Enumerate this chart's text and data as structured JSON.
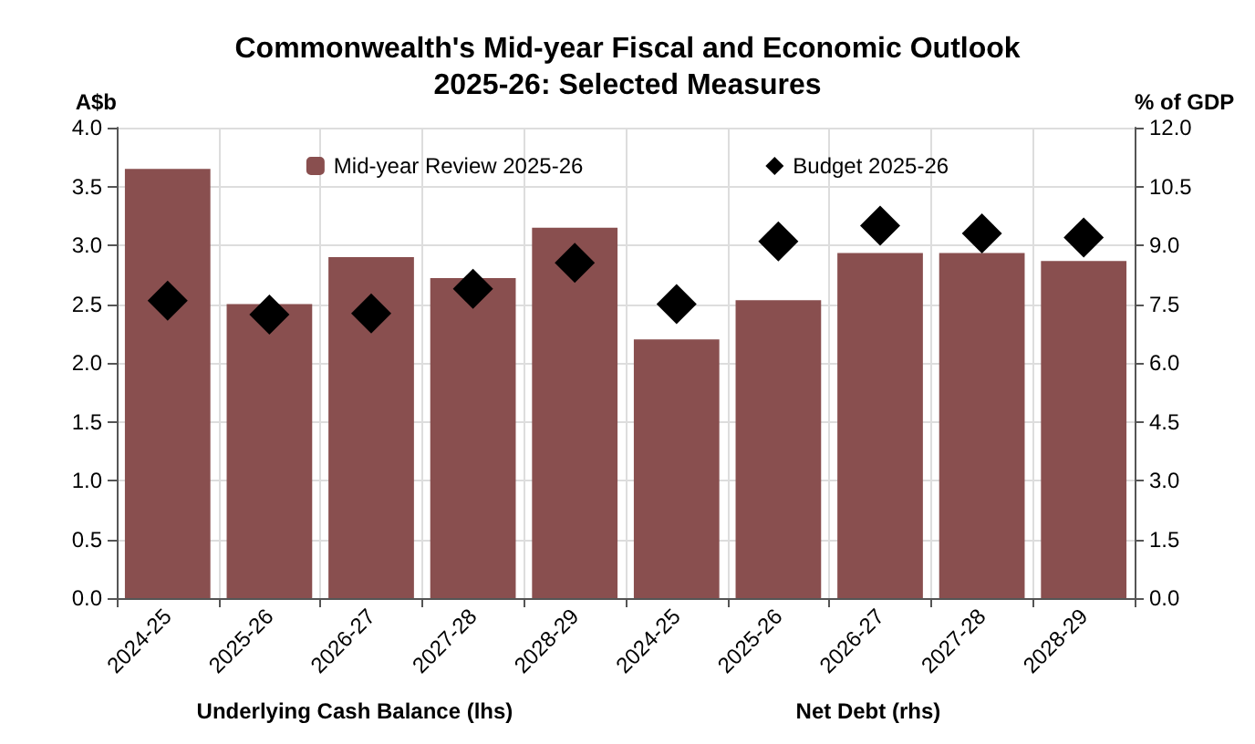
{
  "chart_data": {
    "type": "bar",
    "title": "Commonwealth's Mid-year Fiscal and Economic Outlook\n2025-26: Selected Measures",
    "ylabel": "A$b",
    "y2label": "% of GDP",
    "categories": [
      "2024-25",
      "2025-26",
      "2026-27",
      "2027-28",
      "2028-29",
      "2024-25",
      "2025-26",
      "2026-27",
      "2027-28",
      "2028-29"
    ],
    "series": [
      {
        "name": "Mid-year Review 2025-26",
        "color": "#894f4f",
        "values": [
          3.65,
          2.5,
          2.9,
          2.72,
          3.15,
          null,
          null,
          null,
          null,
          null
        ]
      },
      {
        "color": "#894f4f",
        "axis": "y2",
        "values": [
          null,
          null,
          null,
          null,
          null,
          6.6,
          7.6,
          8.8,
          8.8,
          8.6
        ]
      },
      {
        "name": "Budget 2025-26",
        "type": "scatter",
        "marker": "diamond",
        "color": "#000000",
        "values": [
          2.53,
          2.41,
          2.42,
          2.63,
          2.85,
          null,
          null,
          null,
          null,
          null
        ]
      },
      {
        "type": "scatter",
        "marker": "diamond",
        "color": "#000000",
        "axis": "y2",
        "values": [
          null,
          null,
          null,
          null,
          null,
          7.5,
          9.1,
          9.5,
          9.3,
          9.2
        ]
      }
    ],
    "ylim": [
      0,
      4
    ],
    "yticks": [
      {
        "value": 0,
        "label": "0.0"
      },
      0.5,
      {
        "value": 1,
        "label": "1.0"
      },
      1.5,
      {
        "value": 2,
        "label": "2.0"
      },
      2.5,
      {
        "value": 3,
        "label": "3.0"
      },
      3.5,
      {
        "value": 4,
        "label": "4.0"
      }
    ],
    "y2lim": [
      0,
      12
    ],
    "y2ticks": [
      {
        "value": 0,
        "label": "0.0"
      },
      1.5,
      {
        "value": 3,
        "label": "3.0"
      },
      4.5,
      {
        "value": 6,
        "label": "6.0"
      },
      7.5,
      {
        "value": 9,
        "label": "9.0"
      },
      10.5,
      {
        "value": 12,
        "label": "12.0"
      }
    ],
    "annotations": [
      "Underlying Cash Balance (lhs)",
      "Net Debt (rhs)"
    ],
    "grid": true,
    "legend": "top"
  }
}
